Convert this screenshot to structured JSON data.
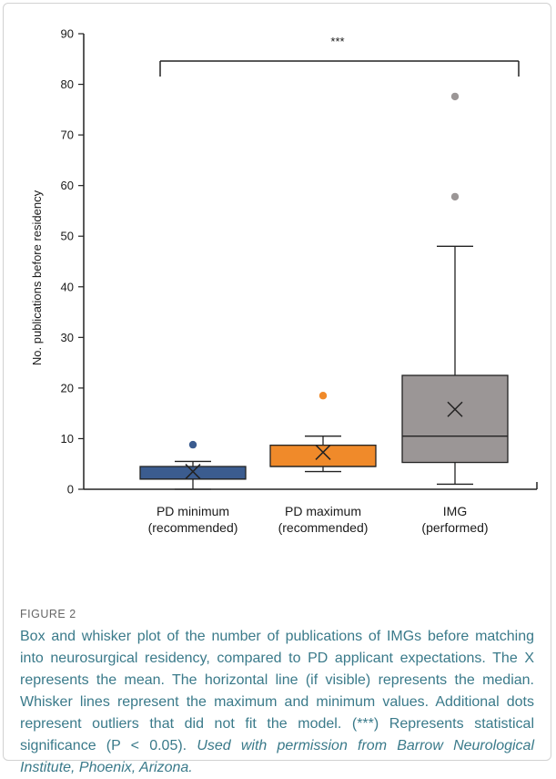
{
  "chart_data": {
    "type": "box",
    "ylabel": "No. publications before residency",
    "ylim": [
      0,
      90
    ],
    "yticks": [
      0,
      10,
      20,
      30,
      40,
      50,
      60,
      70,
      80,
      90
    ],
    "significance_label": "***",
    "boxes": [
      {
        "category_line1": "PD minimum",
        "category_line2": "(recommended)",
        "color": "#3b5c8f",
        "min": 0,
        "q1": 2,
        "median": 2,
        "q3": 4.5,
        "max": 5.5,
        "mean": 3.5,
        "outliers": [
          8.8
        ]
      },
      {
        "category_line1": "PD maximum",
        "category_line2": "(recommended)",
        "color": "#f08a2a",
        "min": 3.5,
        "q1": 4.5,
        "median": 4.5,
        "q3": 8.7,
        "max": 10.5,
        "mean": 7.3,
        "outliers": [
          18.5
        ]
      },
      {
        "category_line1": "IMG",
        "category_line2": "(performed)",
        "color": "#9b9696",
        "min": 1,
        "q1": 5.3,
        "median": 10.5,
        "q3": 22.5,
        "max": 48,
        "mean": 15.8,
        "outliers": [
          57.8,
          77.6
        ]
      }
    ]
  },
  "caption": {
    "label": "FIGURE 2",
    "text": "Box and whisker plot of the number of publications of IMGs before matching into neurosurgical residency, compared to PD applicant expectations. The X represents the mean. The horizontal line (if visible) represents the median. Whisker lines represent the maximum and minimum values. Additional dots represent outliers that did not fit the model. (***) Represents statistical significance (P < 0.05).",
    "credit": "Used with permission from Barrow Neurological Institute, Phoenix, Arizona."
  }
}
